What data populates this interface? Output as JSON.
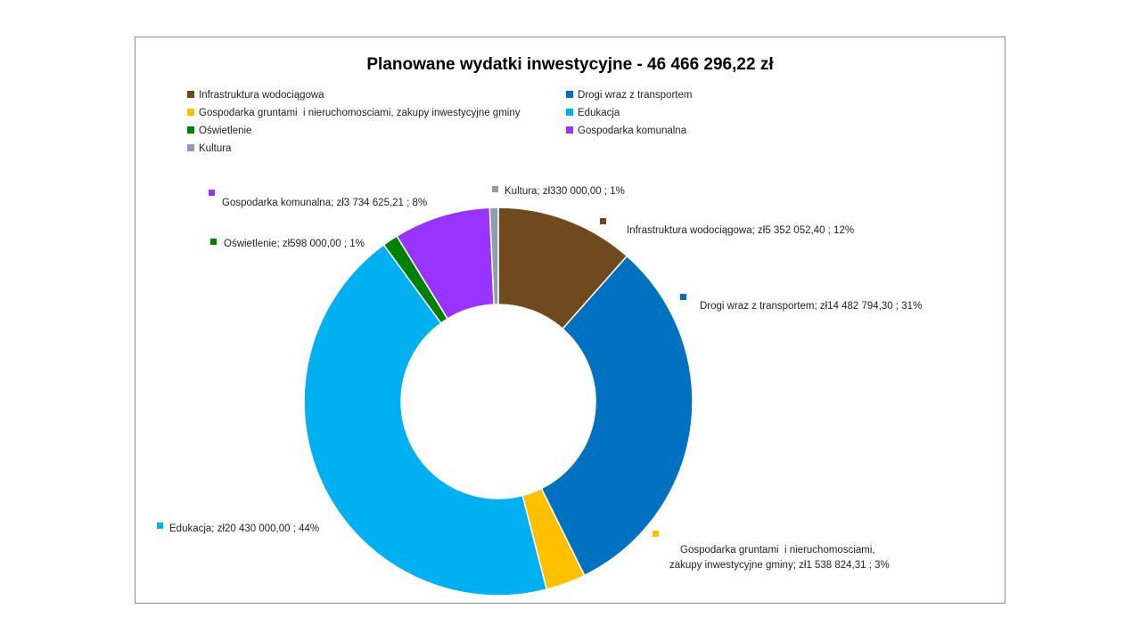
{
  "chart_data": {
    "type": "pie",
    "title": "Planowane wydatki inwestycyjne - 46 466 296,22 zł",
    "legend_placement": "top",
    "slices": [
      {
        "name": "Infrastruktura wodociągowa",
        "value": 5352052.4,
        "label": "Infrastruktura wodociągowa; zł5 352 052,40 ; 12%",
        "color": "#6f4a1f"
      },
      {
        "name": "Drogi wraz z transportem",
        "value": 14482794.3,
        "label": "Drogi wraz z transportem; zł14 482 794,30 ; 31%",
        "color": "#0070c0"
      },
      {
        "name": "Gospodarka gruntami  i nieruchomosciami, zakupy inwestycyjne gminy",
        "value": 1538824.31,
        "label_lines": [
          "Gospodarka gruntami  i nieruchomosciami,",
          "zakupy inwestycyjne gminy; zł1 538 824,31 ; 3%"
        ],
        "color": "#ffc000"
      },
      {
        "name": "Edukacja",
        "value": 20430000.0,
        "label": "Edukacja; zł20 430 000,00 ; 44%",
        "color": "#00b0f0"
      },
      {
        "name": "Oświetlenie",
        "value": 598000.0,
        "label": "Oświetlenie; zł598 000,00 ; 1%",
        "color": "#008000"
      },
      {
        "name": "Gospodarka komunalna",
        "value": 3734625.21,
        "label": "Gospodarka komunalna; zł3 734 625,21 ; 8%",
        "color": "#9933ff"
      },
      {
        "name": "Kultura",
        "value": 330000.0,
        "label": "Kultura; zł330 000,00 ; 1%",
        "color": "#8c9fb0"
      }
    ]
  }
}
